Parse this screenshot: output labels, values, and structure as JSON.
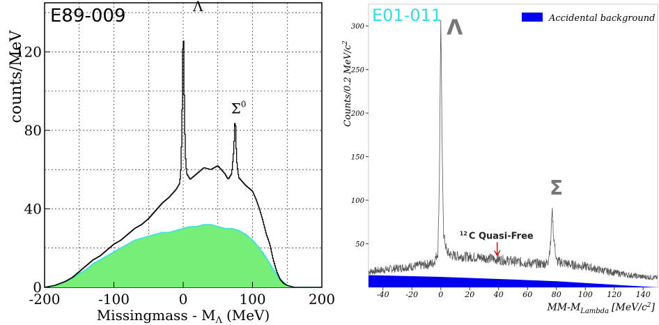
{
  "chart_data": [
    {
      "type": "line",
      "title": "E89-009",
      "xlabel": "Missingmass - M",
      "xlabel_sub": "Λ",
      "xlabel_unit": "(MeV)",
      "ylabel": "counts/MeV",
      "xlim": [
        -200,
        200
      ],
      "ylim": [
        0,
        145
      ],
      "grid": true,
      "x_ticks": [
        -200,
        -100,
        0,
        100,
        200
      ],
      "x_tick_labels": [
        "-200",
        "-100",
        "0",
        "100",
        "200"
      ],
      "y_ticks": [
        0,
        40,
        80,
        120
      ],
      "y_tick_labels": [
        "0",
        "40",
        "80",
        "120"
      ],
      "annotations": [
        {
          "text": "Λ",
          "x": 0,
          "y": 140
        },
        {
          "text": "Σ",
          "sup": "0",
          "x": 75,
          "y": 88
        }
      ],
      "colors": {
        "data": "#000000",
        "accidental": "#40e0e0",
        "fill": "#77ee77",
        "title": "#000000"
      },
      "series": [
        {
          "style": "data",
          "points": [
            [
              -200,
              0
            ],
            [
              -185,
              1
            ],
            [
              -170,
              3
            ],
            [
              -160,
              5
            ],
            [
              -150,
              8
            ],
            [
              -140,
              11
            ],
            [
              -130,
              14
            ],
            [
              -120,
              16
            ],
            [
              -110,
              19
            ],
            [
              -100,
              22
            ],
            [
              -90,
              24
            ],
            [
              -80,
              27
            ],
            [
              -70,
              30
            ],
            [
              -60,
              32
            ],
            [
              -50,
              35
            ],
            [
              -40,
              39
            ],
            [
              -30,
              43
            ],
            [
              -20,
              46
            ],
            [
              -10,
              50
            ],
            [
              -5,
              53
            ],
            [
              -3,
              62
            ],
            [
              -1,
              100
            ],
            [
              0,
              143
            ],
            [
              1,
              108
            ],
            [
              3,
              68
            ],
            [
              5,
              58
            ],
            [
              10,
              55
            ],
            [
              20,
              58
            ],
            [
              30,
              61
            ],
            [
              40,
              60
            ],
            [
              50,
              62
            ],
            [
              60,
              58
            ],
            [
              65,
              55
            ],
            [
              70,
              58
            ],
            [
              73,
              70
            ],
            [
              75,
              88
            ],
            [
              77,
              65
            ],
            [
              80,
              56
            ],
            [
              90,
              52
            ],
            [
              100,
              49
            ],
            [
              105,
              45
            ],
            [
              110,
              40
            ],
            [
              115,
              34
            ],
            [
              120,
              27
            ],
            [
              125,
              22
            ],
            [
              130,
              14
            ],
            [
              135,
              8
            ],
            [
              140,
              4
            ],
            [
              145,
              2
            ],
            [
              150,
              1
            ],
            [
              160,
              0
            ],
            [
              200,
              0
            ]
          ]
        },
        {
          "style": "accidental",
          "points": [
            [
              -200,
              0
            ],
            [
              -185,
              1
            ],
            [
              -170,
              3
            ],
            [
              -160,
              5
            ],
            [
              -150,
              7
            ],
            [
              -140,
              9
            ],
            [
              -130,
              12
            ],
            [
              -120,
              14
            ],
            [
              -110,
              16
            ],
            [
              -100,
              18
            ],
            [
              -90,
              20
            ],
            [
              -80,
              22
            ],
            [
              -70,
              24
            ],
            [
              -60,
              25
            ],
            [
              -50,
              26
            ],
            [
              -40,
              27
            ],
            [
              -30,
              28
            ],
            [
              -20,
              28
            ],
            [
              -10,
              29
            ],
            [
              0,
              30
            ],
            [
              10,
              31
            ],
            [
              20,
              31
            ],
            [
              30,
              32
            ],
            [
              40,
              32
            ],
            [
              50,
              31
            ],
            [
              60,
              30
            ],
            [
              70,
              30
            ],
            [
              80,
              29
            ],
            [
              90,
              27
            ],
            [
              100,
              24
            ],
            [
              110,
              20
            ],
            [
              120,
              15
            ],
            [
              130,
              9
            ],
            [
              140,
              4
            ],
            [
              150,
              1
            ],
            [
              160,
              0
            ],
            [
              200,
              0
            ]
          ]
        }
      ]
    },
    {
      "type": "line",
      "title": "E01-011",
      "xlabel": "MM-M",
      "xlabel_sub": "Lambda",
      "xlabel_unit": "[MeV/c",
      "xlabel_unit_sup": "2",
      "xlabel_unit_end": "]",
      "ylabel": "Counts/0.2 MeV/c",
      "ylabel_sup": "2",
      "xlim": [
        -50,
        150
      ],
      "ylim": [
        0,
        325
      ],
      "grid": false,
      "x_ticks": [
        -40,
        -20,
        0,
        20,
        40,
        60,
        80,
        100,
        120,
        140
      ],
      "x_tick_labels": [
        "-40",
        "-20",
        "0",
        "20",
        "40",
        "60",
        "80",
        "100",
        "120",
        "140"
      ],
      "y_ticks": [
        50,
        100,
        150,
        200,
        250,
        300
      ],
      "y_tick_labels": [
        "50",
        "100",
        "150",
        "200",
        "250",
        "300"
      ],
      "legend": {
        "position": "top-right",
        "entries": [
          {
            "name": "Accidental background",
            "color": "#0000ee"
          }
        ]
      },
      "annotations": [
        {
          "text": "Λ",
          "x": 0,
          "y": 290
        },
        {
          "text": "Σ",
          "x": 78,
          "y": 100
        },
        {
          "text": "C Quasi-Free",
          "sup": "12",
          "x": 40,
          "y": 55
        }
      ],
      "colors": {
        "data": "#555555",
        "background": "#0000ee",
        "arrow": "#dd0000",
        "title": "#33dddd"
      },
      "series": [
        {
          "style": "data",
          "points": [
            [
              -50,
              18
            ],
            [
              -40,
              20
            ],
            [
              -30,
              22
            ],
            [
              -20,
              24
            ],
            [
              -10,
              26
            ],
            [
              -5,
              28
            ],
            [
              -2,
              40
            ],
            [
              -1,
              120
            ],
            [
              0,
              310
            ],
            [
              1,
              150
            ],
            [
              2,
              60
            ],
            [
              4,
              42
            ],
            [
              6,
              38
            ],
            [
              10,
              36
            ],
            [
              20,
              35
            ],
            [
              30,
              34
            ],
            [
              40,
              32
            ],
            [
              50,
              30
            ],
            [
              60,
              28
            ],
            [
              70,
              27
            ],
            [
              74,
              28
            ],
            [
              76,
              50
            ],
            [
              77,
              92
            ],
            [
              78,
              60
            ],
            [
              80,
              30
            ],
            [
              90,
              26
            ],
            [
              100,
              24
            ],
            [
              110,
              20
            ],
            [
              120,
              17
            ],
            [
              130,
              14
            ],
            [
              140,
              12
            ],
            [
              150,
              11
            ]
          ]
        },
        {
          "name": "Accidental background",
          "style": "background",
          "points": [
            [
              -50,
              14
            ],
            [
              0,
              12
            ],
            [
              50,
              9
            ],
            [
              80,
              7
            ],
            [
              100,
              5
            ],
            [
              120,
              3
            ],
            [
              140,
              1
            ],
            [
              150,
              0
            ]
          ]
        }
      ]
    }
  ]
}
